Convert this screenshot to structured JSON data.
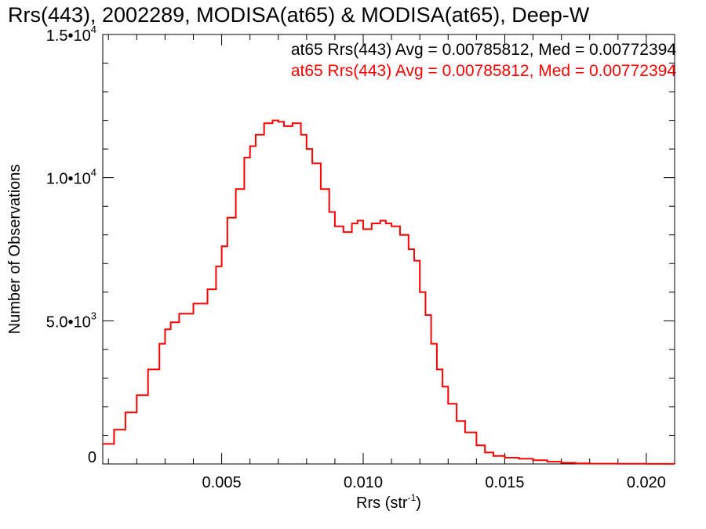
{
  "chart_data": {
    "type": "line",
    "title": "Rrs(443), 2002289, MODISA(at65) & MODISA(at65), Deep-W",
    "xlabel": "Rrs (str",
    "xlabel_sup": "-1",
    "xlabel_close": ")",
    "ylabel": "Number of Observations",
    "xlim": [
      0.0008,
      0.021
    ],
    "ylim": [
      0,
      15000
    ],
    "x_ticks": [
      {
        "value": 0.005,
        "label": "0.005"
      },
      {
        "value": 0.01,
        "label": "0.010"
      },
      {
        "value": 0.015,
        "label": "0.015"
      },
      {
        "value": 0.02,
        "label": "0.020"
      }
    ],
    "y_ticks": [
      {
        "value": 0,
        "mantissa": "0",
        "exp": ""
      },
      {
        "value": 5000,
        "mantissa": "5.0•10",
        "exp": "3"
      },
      {
        "value": 10000,
        "mantissa": "1.0•10",
        "exp": "4"
      },
      {
        "value": 15000,
        "mantissa": "1.5•10",
        "exp": "4"
      }
    ],
    "legend_position": "top-right",
    "annotations": [
      {
        "text": "at65 Rrs(443) Avg = 0.00785812, Med = 0.00772394",
        "color": "#000000"
      },
      {
        "text": "at65 Rrs(443) Avg = 0.00785812, Med = 0.00772394",
        "color": "#ff0000"
      }
    ],
    "series": [
      {
        "color": "#ff0000",
        "style": "step",
        "x": [
          0.0008,
          0.0012,
          0.0016,
          0.002,
          0.0024,
          0.0028,
          0.003,
          0.0032,
          0.0035,
          0.004,
          0.0045,
          0.0048,
          0.005,
          0.0052,
          0.0055,
          0.0058,
          0.006,
          0.0062,
          0.0065,
          0.0068,
          0.007,
          0.0072,
          0.0075,
          0.0078,
          0.008,
          0.0082,
          0.0085,
          0.0088,
          0.009,
          0.0093,
          0.0096,
          0.0098,
          0.01,
          0.0103,
          0.0106,
          0.0108,
          0.011,
          0.0113,
          0.0116,
          0.0118,
          0.012,
          0.0122,
          0.0124,
          0.0126,
          0.0128,
          0.013,
          0.0133,
          0.0136,
          0.014,
          0.0143,
          0.0146,
          0.015,
          0.0155,
          0.016,
          0.0165,
          0.017,
          0.0175,
          0.018,
          0.019,
          0.02,
          0.021
        ],
        "y": [
          700,
          1200,
          1800,
          2400,
          3300,
          4200,
          4700,
          4950,
          5250,
          5600,
          6100,
          6900,
          7600,
          8600,
          9600,
          10700,
          11100,
          11500,
          11900,
          12000,
          11950,
          11800,
          11900,
          11500,
          11000,
          10500,
          9600,
          8800,
          8300,
          8100,
          8400,
          8500,
          8200,
          8400,
          8500,
          8400,
          8300,
          8000,
          7500,
          7100,
          6000,
          5200,
          4200,
          3300,
          2700,
          2100,
          1500,
          1100,
          650,
          400,
          280,
          220,
          180,
          130,
          80,
          40,
          20,
          10,
          5,
          2,
          0
        ]
      }
    ]
  }
}
